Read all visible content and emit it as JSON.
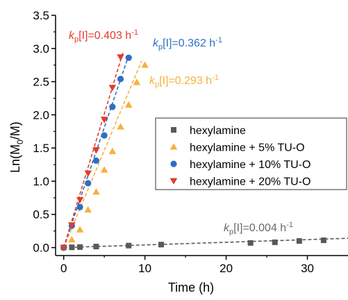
{
  "chart_data": {
    "type": "scatter",
    "xlabel": "Time (h)",
    "ylabel": "Ln(M0/M)",
    "xlim": [
      -1,
      35
    ],
    "ylim": [
      -0.12,
      3.5
    ],
    "xticks": [
      0,
      10,
      20,
      30
    ],
    "yticks": [
      0.0,
      0.5,
      1.0,
      1.5,
      2.0,
      2.5,
      3.0,
      3.5
    ],
    "ytick_labels": [
      "0.0",
      "0.5",
      "1.0",
      "1.5",
      "2.0",
      "2.5",
      "3.0",
      "3.5"
    ],
    "legend_position": "right",
    "series": [
      {
        "name": "hexylamine",
        "color": "#595959",
        "marker": "square",
        "x": [
          0,
          1,
          2,
          4,
          8,
          12,
          23,
          26,
          29,
          32
        ],
        "y": [
          0.0,
          0.004,
          0.008,
          0.016,
          0.03,
          0.045,
          0.07,
          0.08,
          0.1,
          0.11
        ],
        "fit_slope": 0.004,
        "fit_x": [
          0,
          35
        ],
        "annotation": {
          "k_symbol": "k",
          "k_sub": "p",
          "text": "[I]=0.004 h",
          "sup": "-1"
        }
      },
      {
        "name": "hexylamine + 5% TU-O",
        "color": "#f6b13c",
        "marker": "triangle-up",
        "x": [
          0,
          1,
          2,
          3,
          4,
          5,
          6,
          7,
          8,
          9,
          10
        ],
        "y": [
          0.0,
          0.12,
          0.27,
          0.57,
          0.84,
          1.17,
          1.45,
          1.82,
          2.15,
          2.49,
          2.75
        ],
        "fit_slope": 0.293,
        "fit_x": [
          0,
          9.6
        ],
        "annotation": {
          "k_symbol": "k",
          "k_sub": "p",
          "text": "[I]=0.293 h",
          "sup": "-1"
        }
      },
      {
        "name": "hexylamine + 10% TU-O",
        "color": "#2d6fc4",
        "marker": "circle",
        "x": [
          0,
          1,
          2,
          3,
          4,
          5,
          6,
          7,
          8
        ],
        "y": [
          0.0,
          0.33,
          0.61,
          0.97,
          1.31,
          1.69,
          2.12,
          2.54,
          2.86
        ],
        "fit_slope": 0.362,
        "fit_x": [
          0,
          8.0
        ],
        "annotation": {
          "k_symbol": "k",
          "k_sub": "p",
          "text": "[I]=0.362 h",
          "sup": "-1"
        }
      },
      {
        "name": "hexylamine + 20% TU-O",
        "color": "#e23b2d",
        "marker": "triangle-down",
        "x": [
          0,
          1,
          2,
          3,
          4,
          5,
          6,
          7
        ],
        "y": [
          0.0,
          0.34,
          0.72,
          1.12,
          1.47,
          1.93,
          2.41,
          2.87
        ],
        "fit_slope": 0.403,
        "fit_x": [
          0,
          7.3
        ],
        "annotation": {
          "k_symbol": "k",
          "k_sub": "p",
          "text": "[I]=0.403 h",
          "sup": "-1"
        }
      }
    ]
  }
}
